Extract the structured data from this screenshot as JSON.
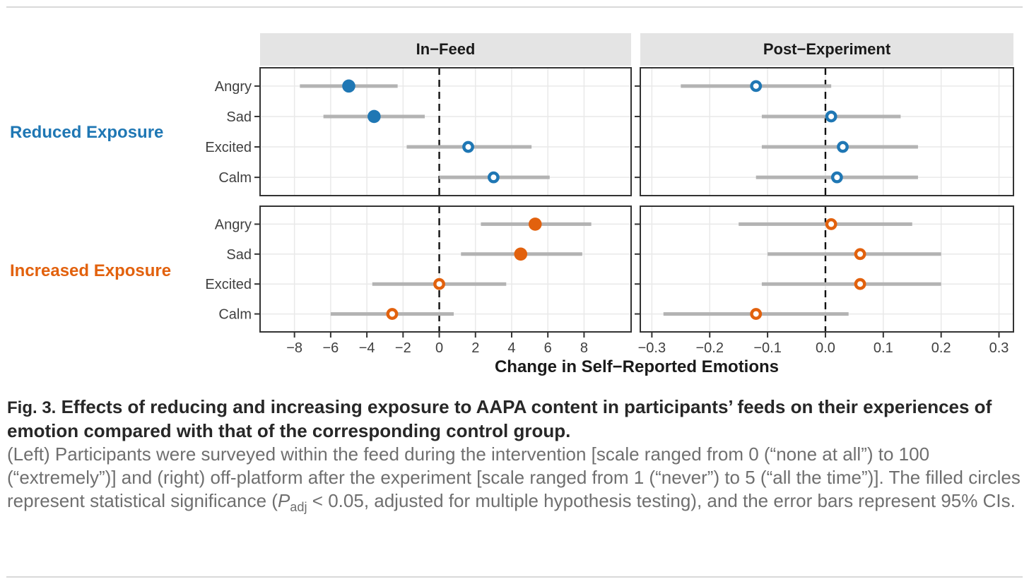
{
  "page": {
    "figure_label": "Fig. 3.",
    "caption_bold": "Effects of reducing and increasing exposure to AAPA content in participants’ feeds on their experiences of emotion compared with that of the corresponding control group.",
    "caption_regular_1": "(Left) Participants were surveyed within the feed during the intervention [scale ranged from 0 (“none at all”) to 100 (“extremely”)] and (right) off-platform after the experiment [scale ranged from 1 (“never”) to 5 (“all the time”)]. The filled circles represent statistical significance (",
    "caption_p_symbol": "P",
    "caption_p_subscript": "adj",
    "caption_regular_2": " < 0.05, adjusted for multiple hypothesis testing), and the error bars represent 95% CIs."
  },
  "chart_data": {
    "type": "scatter",
    "subtype": "forest-plot dot-and-error, 2x2 facet grid",
    "xlabel": "Change in Self−Reported Emotions",
    "categories": [
      "Angry",
      "Sad",
      "Excited",
      "Calm"
    ],
    "legend_note": "filled circle = significant (P_adj < 0.05); open circle = not significant; gray bar = 95% CI; dashed line at 0",
    "facet_columns": [
      {
        "label": "In−Feed",
        "xlim": [
          -9.9,
          10.6
        ],
        "ticks": [
          {
            "v": -8,
            "label": "−8"
          },
          {
            "v": -6,
            "label": "−6"
          },
          {
            "v": -4,
            "label": "−4"
          },
          {
            "v": -2,
            "label": "−2"
          },
          {
            "v": 0,
            "label": "0"
          },
          {
            "v": 2,
            "label": "2"
          },
          {
            "v": 4,
            "label": "4"
          },
          {
            "v": 6,
            "label": "6"
          },
          {
            "v": 8,
            "label": "8"
          }
        ]
      },
      {
        "label": "Post−Experiment",
        "xlim": [
          -0.32,
          0.325
        ],
        "ticks": [
          {
            "v": -0.3,
            "label": "−0.3"
          },
          {
            "v": -0.2,
            "label": "−0.2"
          },
          {
            "v": -0.1,
            "label": "−0.1"
          },
          {
            "v": 0.0,
            "label": "0.0"
          },
          {
            "v": 0.1,
            "label": "0.1"
          },
          {
            "v": 0.2,
            "label": "0.2"
          },
          {
            "v": 0.3,
            "label": "0.3"
          }
        ]
      }
    ],
    "facet_rows": [
      {
        "label": "Reduced Exposure",
        "color": "#1f77b4"
      },
      {
        "label": "Increased Exposure",
        "color": "#e2610d"
      }
    ],
    "zero_line": 0,
    "colors": {
      "error_bar": "#b3b3b3",
      "grid": "#e9e9e9",
      "panel_border": "#333333",
      "strip_background": "#e4e4e4",
      "tick_text": "#404040",
      "dashed_line": "#111111"
    },
    "series": [
      {
        "row": "Reduced Exposure",
        "col": "In−Feed",
        "points": [
          {
            "emotion": "Angry",
            "est": -5.0,
            "lo": -7.7,
            "hi": -2.3,
            "significant": true
          },
          {
            "emotion": "Sad",
            "est": -3.6,
            "lo": -6.4,
            "hi": -0.8,
            "significant": true
          },
          {
            "emotion": "Excited",
            "est": 1.6,
            "lo": -1.8,
            "hi": 5.1,
            "significant": false
          },
          {
            "emotion": "Calm",
            "est": 3.0,
            "lo": 0.0,
            "hi": 6.1,
            "significant": false
          }
        ]
      },
      {
        "row": "Reduced Exposure",
        "col": "Post−Experiment",
        "points": [
          {
            "emotion": "Angry",
            "est": -0.12,
            "lo": -0.25,
            "hi": 0.01,
            "significant": false
          },
          {
            "emotion": "Sad",
            "est": 0.01,
            "lo": -0.11,
            "hi": 0.13,
            "significant": false
          },
          {
            "emotion": "Excited",
            "est": 0.03,
            "lo": -0.11,
            "hi": 0.16,
            "significant": false
          },
          {
            "emotion": "Calm",
            "est": 0.02,
            "lo": -0.12,
            "hi": 0.16,
            "significant": false
          }
        ]
      },
      {
        "row": "Increased Exposure",
        "col": "In−Feed",
        "points": [
          {
            "emotion": "Angry",
            "est": 5.3,
            "lo": 2.3,
            "hi": 8.4,
            "significant": true
          },
          {
            "emotion": "Sad",
            "est": 4.5,
            "lo": 1.2,
            "hi": 7.9,
            "significant": true
          },
          {
            "emotion": "Excited",
            "est": 0.0,
            "lo": -3.7,
            "hi": 3.7,
            "significant": false
          },
          {
            "emotion": "Calm",
            "est": -2.6,
            "lo": -6.0,
            "hi": 0.8,
            "significant": false
          }
        ]
      },
      {
        "row": "Increased Exposure",
        "col": "Post−Experiment",
        "points": [
          {
            "emotion": "Angry",
            "est": 0.01,
            "lo": -0.15,
            "hi": 0.15,
            "significant": false
          },
          {
            "emotion": "Sad",
            "est": 0.06,
            "lo": -0.1,
            "hi": 0.2,
            "significant": false
          },
          {
            "emotion": "Excited",
            "est": 0.06,
            "lo": -0.11,
            "hi": 0.2,
            "significant": false
          },
          {
            "emotion": "Calm",
            "est": -0.12,
            "lo": -0.28,
            "hi": 0.04,
            "significant": false
          }
        ]
      }
    ]
  }
}
